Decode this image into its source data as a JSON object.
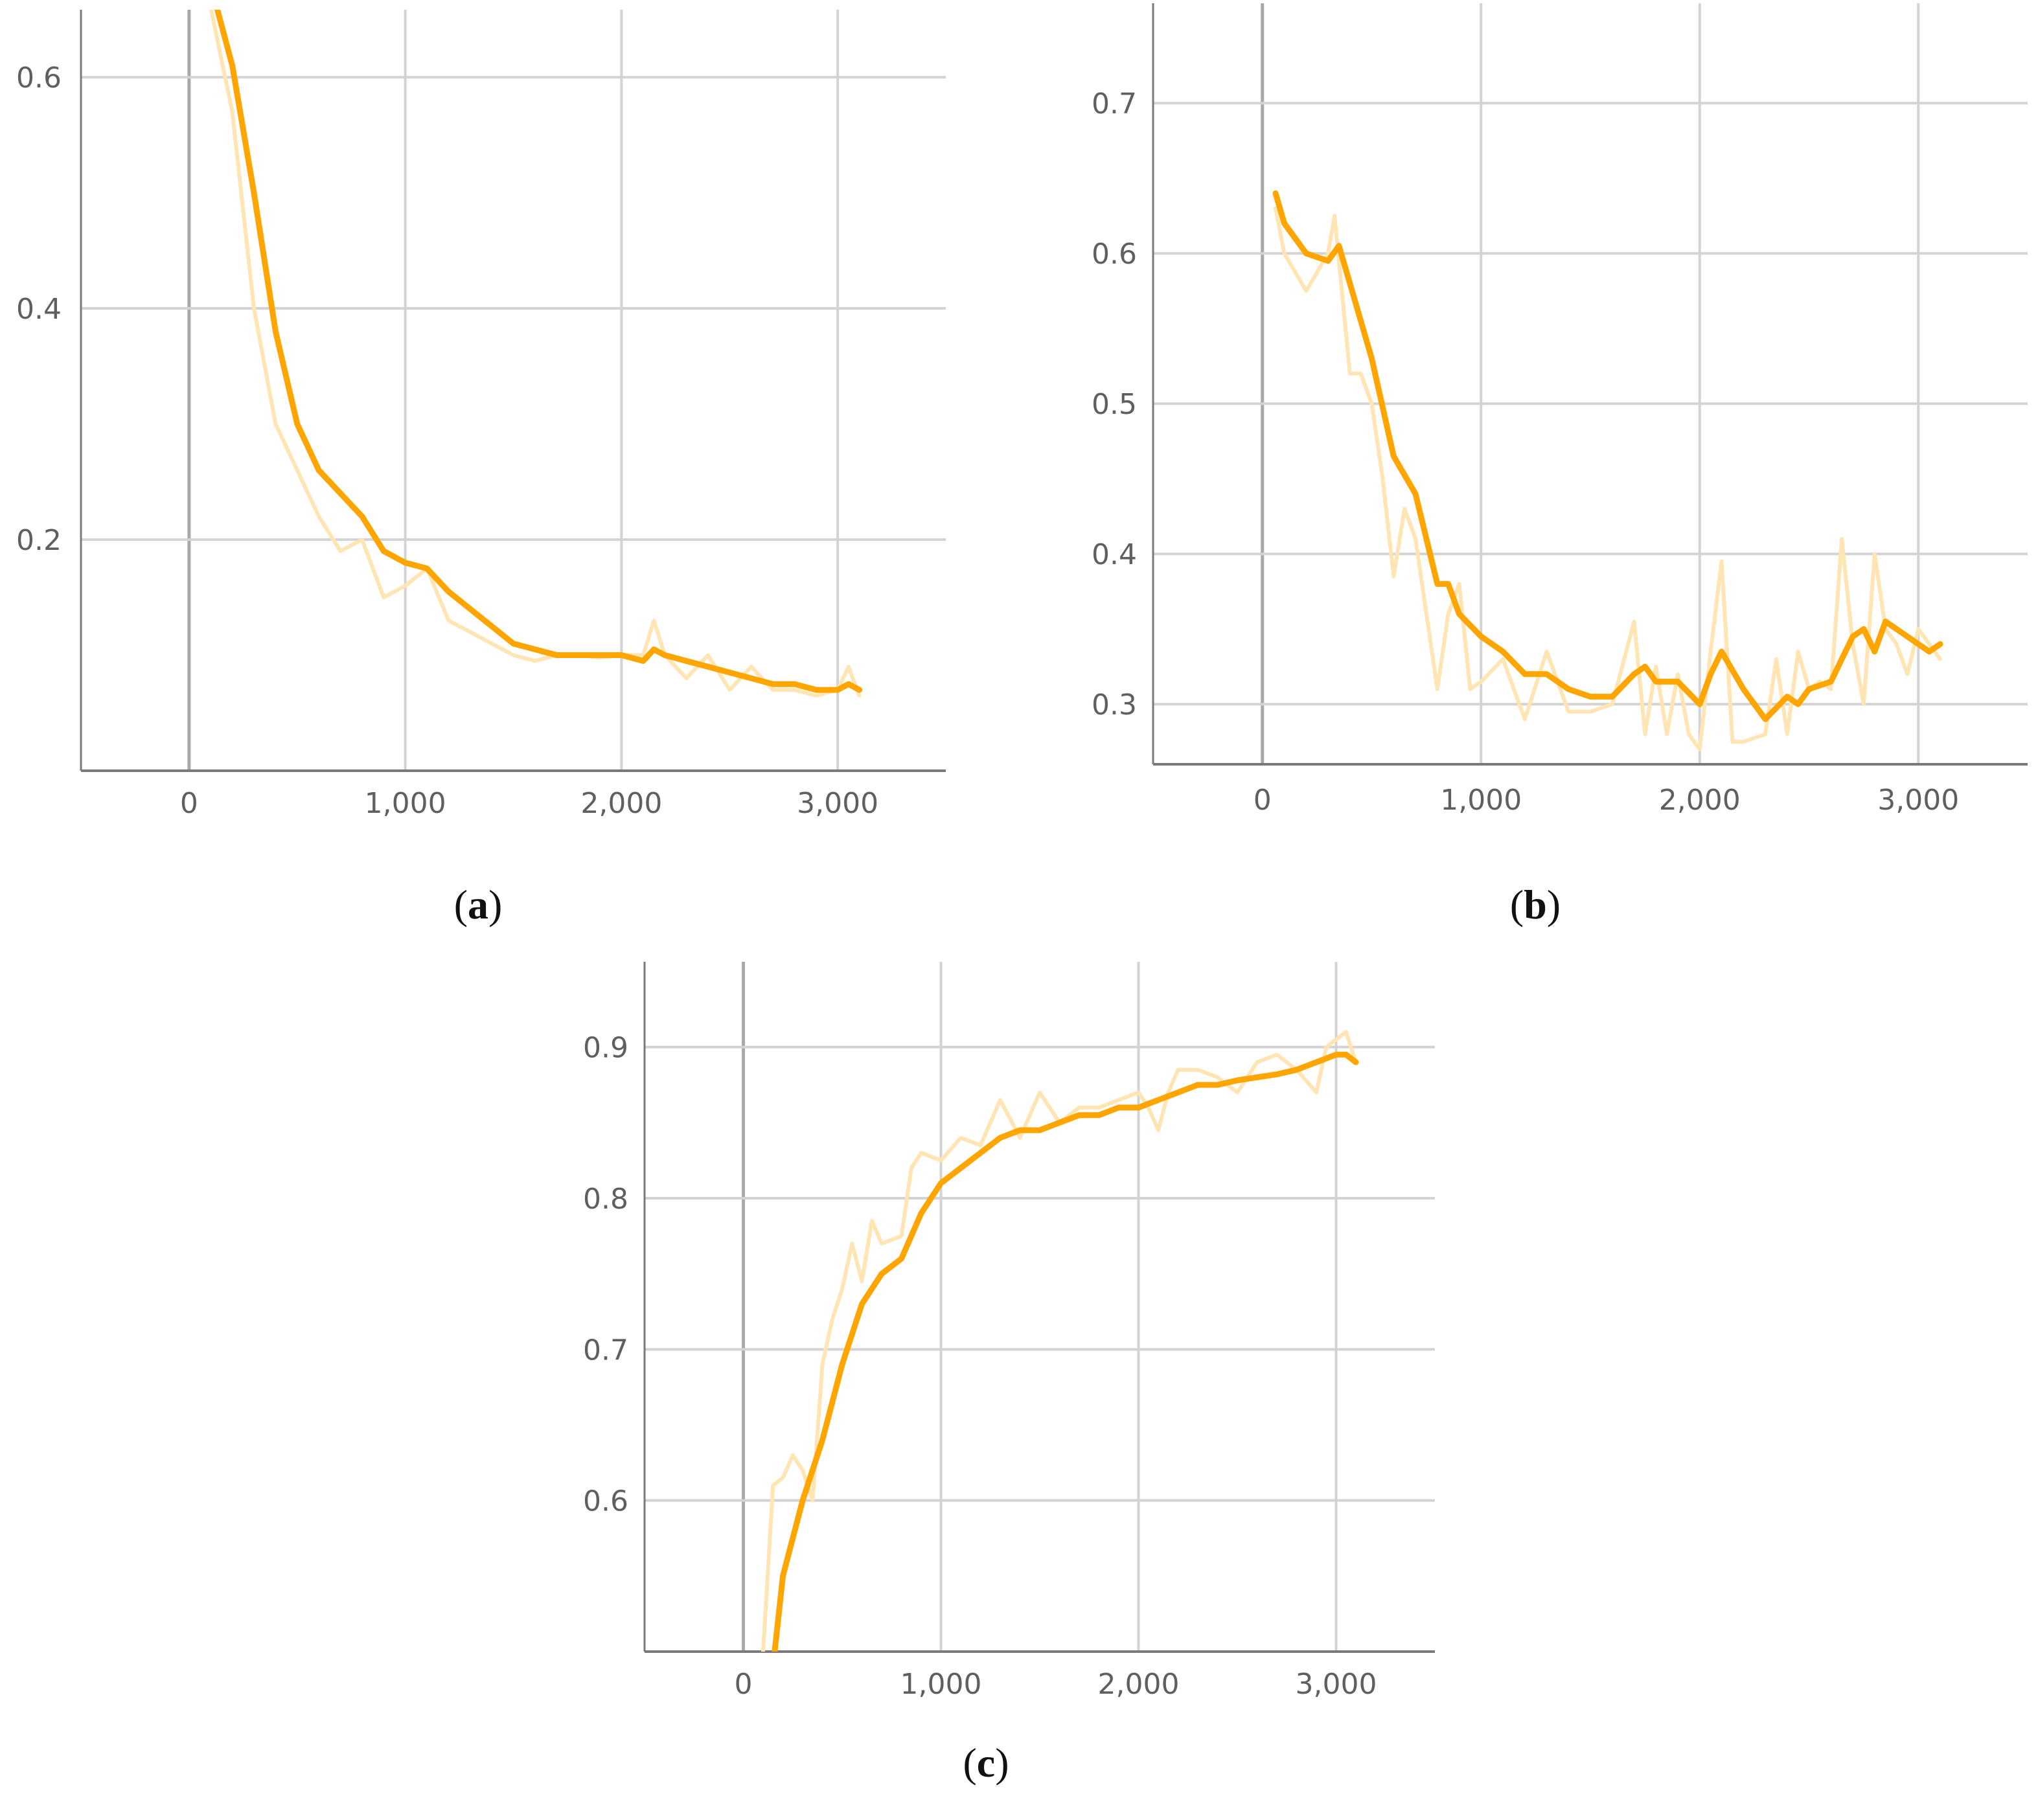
{
  "colors": {
    "line": "#ffa500",
    "raw": "#ffe5b4",
    "grid": "#d3d3d3",
    "zero_axis": "#a9a9a9",
    "axis": "#7a7a7a"
  },
  "captions": [
    {
      "paren_open": "(",
      "letter": "a",
      "paren_close": ")"
    },
    {
      "paren_open": "(",
      "letter": "b",
      "paren_close": ")"
    },
    {
      "paren_open": "(",
      "letter": "c",
      "paren_close": ")"
    }
  ],
  "chart_data": [
    {
      "type": "line",
      "panel": "a",
      "title": "",
      "xlabel": "",
      "ylabel": "",
      "xlim": [
        -500,
        3500
      ],
      "ylim": [
        0.0,
        0.65
      ],
      "x_ticks": [
        0,
        1000,
        2000,
        3000
      ],
      "x_tick_labels": [
        "0",
        "1,000",
        "2,000",
        "3,000"
      ],
      "y_ticks": [
        0.2,
        0.4,
        0.6
      ],
      "y_tick_labels": [
        "0.2",
        "0.4",
        "0.6"
      ],
      "grid": true,
      "legend": "none",
      "series": [
        {
          "role": "smoothed",
          "x": [
            100,
            200,
            300,
            400,
            500,
            600,
            700,
            800,
            900,
            1000,
            1100,
            1200,
            1300,
            1400,
            1500,
            1600,
            1700,
            1800,
            1900,
            2000,
            2100,
            2150,
            2200,
            2300,
            2400,
            2500,
            2600,
            2700,
            2800,
            2900,
            3000,
            3050,
            3100
          ],
          "y": [
            0.68,
            0.61,
            0.5,
            0.38,
            0.3,
            0.26,
            0.24,
            0.22,
            0.19,
            0.18,
            0.175,
            0.155,
            0.14,
            0.125,
            0.11,
            0.105,
            0.1,
            0.1,
            0.1,
            0.1,
            0.095,
            0.105,
            0.1,
            0.095,
            0.09,
            0.085,
            0.08,
            0.075,
            0.075,
            0.07,
            0.07,
            0.075,
            0.07
          ]
        },
        {
          "role": "raw",
          "x": [
            100,
            200,
            300,
            400,
            500,
            600,
            700,
            800,
            900,
            1000,
            1100,
            1200,
            1300,
            1400,
            1500,
            1600,
            1700,
            1800,
            1900,
            2000,
            2100,
            2150,
            2200,
            2300,
            2400,
            2500,
            2600,
            2700,
            2800,
            2900,
            3000,
            3050,
            3100
          ],
          "y": [
            0.66,
            0.57,
            0.4,
            0.3,
            0.26,
            0.22,
            0.19,
            0.2,
            0.15,
            0.16,
            0.175,
            0.13,
            0.12,
            0.11,
            0.1,
            0.095,
            0.1,
            0.1,
            0.098,
            0.1,
            0.1,
            0.13,
            0.1,
            0.08,
            0.1,
            0.07,
            0.09,
            0.07,
            0.07,
            0.065,
            0.07,
            0.09,
            0.065
          ]
        }
      ]
    },
    {
      "type": "line",
      "panel": "b",
      "title": "",
      "xlabel": "",
      "ylabel": "",
      "xlim": [
        -500,
        3500
      ],
      "ylim": [
        0.26,
        0.76
      ],
      "x_ticks": [
        0,
        1000,
        2000,
        3000
      ],
      "x_tick_labels": [
        "0",
        "1,000",
        "2,000",
        "3,000"
      ],
      "y_ticks": [
        0.3,
        0.4,
        0.5,
        0.6,
        0.7
      ],
      "y_tick_labels": [
        "0.3",
        "0.4",
        "0.5",
        "0.6",
        "0.7"
      ],
      "grid": true,
      "legend": "none",
      "series": [
        {
          "role": "smoothed",
          "x": [
            60,
            100,
            200,
            300,
            350,
            400,
            500,
            600,
            700,
            800,
            850,
            900,
            1000,
            1100,
            1200,
            1300,
            1400,
            1500,
            1600,
            1700,
            1750,
            1800,
            1900,
            2000,
            2050,
            2100,
            2200,
            2300,
            2400,
            2450,
            2500,
            2600,
            2700,
            2750,
            2800,
            2850,
            2900,
            3000,
            3050,
            3100
          ],
          "y": [
            0.64,
            0.62,
            0.6,
            0.595,
            0.605,
            0.58,
            0.53,
            0.465,
            0.44,
            0.38,
            0.38,
            0.36,
            0.345,
            0.335,
            0.32,
            0.32,
            0.31,
            0.305,
            0.305,
            0.32,
            0.325,
            0.315,
            0.315,
            0.3,
            0.32,
            0.335,
            0.31,
            0.29,
            0.305,
            0.3,
            0.31,
            0.315,
            0.345,
            0.35,
            0.335,
            0.355,
            0.35,
            0.34,
            0.335,
            0.34
          ]
        },
        {
          "role": "raw",
          "x": [
            60,
            100,
            200,
            300,
            330,
            400,
            450,
            500,
            550,
            600,
            650,
            700,
            800,
            850,
            900,
            950,
            1000,
            1100,
            1200,
            1300,
            1400,
            1500,
            1600,
            1700,
            1750,
            1800,
            1850,
            1900,
            1950,
            2000,
            2050,
            2100,
            2150,
            2200,
            2300,
            2350,
            2400,
            2450,
            2500,
            2550,
            2600,
            2650,
            2700,
            2750,
            2800,
            2850,
            2900,
            2950,
            3000,
            3050,
            3100
          ],
          "y": [
            0.63,
            0.6,
            0.575,
            0.6,
            0.625,
            0.52,
            0.52,
            0.5,
            0.45,
            0.385,
            0.43,
            0.41,
            0.31,
            0.36,
            0.38,
            0.31,
            0.315,
            0.33,
            0.29,
            0.335,
            0.295,
            0.295,
            0.3,
            0.355,
            0.28,
            0.325,
            0.28,
            0.32,
            0.28,
            0.27,
            0.335,
            0.395,
            0.275,
            0.275,
            0.28,
            0.33,
            0.28,
            0.335,
            0.31,
            0.315,
            0.31,
            0.41,
            0.34,
            0.3,
            0.4,
            0.35,
            0.34,
            0.32,
            0.35,
            0.34,
            0.33
          ]
        }
      ]
    },
    {
      "type": "line",
      "panel": "c",
      "title": "",
      "xlabel": "",
      "ylabel": "",
      "xlim": [
        -500,
        3500
      ],
      "ylim": [
        0.5,
        0.95
      ],
      "x_ticks": [
        0,
        1000,
        2000,
        3000
      ],
      "x_tick_labels": [
        "0",
        "1,000",
        "2,000",
        "3,000"
      ],
      "y_ticks": [
        0.6,
        0.7,
        0.8,
        0.9
      ],
      "y_tick_labels": [
        "0.6",
        "0.7",
        "0.8",
        "0.9"
      ],
      "grid": true,
      "legend": "none",
      "series": [
        {
          "role": "smoothed",
          "x": [
            150,
            200,
            300,
            400,
            500,
            600,
            700,
            800,
            900,
            1000,
            1100,
            1200,
            1300,
            1400,
            1500,
            1600,
            1700,
            1800,
            1900,
            2000,
            2100,
            2200,
            2300,
            2400,
            2500,
            2600,
            2700,
            2800,
            2900,
            3000,
            3050,
            3100
          ],
          "y": [
            0.49,
            0.55,
            0.6,
            0.64,
            0.69,
            0.73,
            0.75,
            0.76,
            0.79,
            0.81,
            0.82,
            0.83,
            0.84,
            0.845,
            0.845,
            0.85,
            0.855,
            0.855,
            0.86,
            0.86,
            0.865,
            0.87,
            0.875,
            0.875,
            0.878,
            0.88,
            0.882,
            0.885,
            0.89,
            0.895,
            0.895,
            0.89
          ]
        },
        {
          "role": "raw",
          "x": [
            100,
            150,
            200,
            250,
            300,
            350,
            400,
            450,
            500,
            550,
            600,
            650,
            700,
            800,
            850,
            900,
            1000,
            1100,
            1200,
            1300,
            1400,
            1500,
            1600,
            1700,
            1800,
            1900,
            2000,
            2050,
            2100,
            2150,
            2200,
            2300,
            2400,
            2500,
            2600,
            2700,
            2800,
            2900,
            2950,
            3000,
            3050,
            3100
          ],
          "y": [
            0.5,
            0.61,
            0.615,
            0.63,
            0.62,
            0.6,
            0.69,
            0.72,
            0.74,
            0.77,
            0.745,
            0.785,
            0.77,
            0.775,
            0.82,
            0.83,
            0.825,
            0.84,
            0.835,
            0.865,
            0.84,
            0.87,
            0.85,
            0.86,
            0.86,
            0.865,
            0.87,
            0.86,
            0.845,
            0.87,
            0.885,
            0.885,
            0.88,
            0.87,
            0.89,
            0.895,
            0.885,
            0.87,
            0.9,
            0.905,
            0.91,
            0.89
          ]
        }
      ]
    }
  ]
}
